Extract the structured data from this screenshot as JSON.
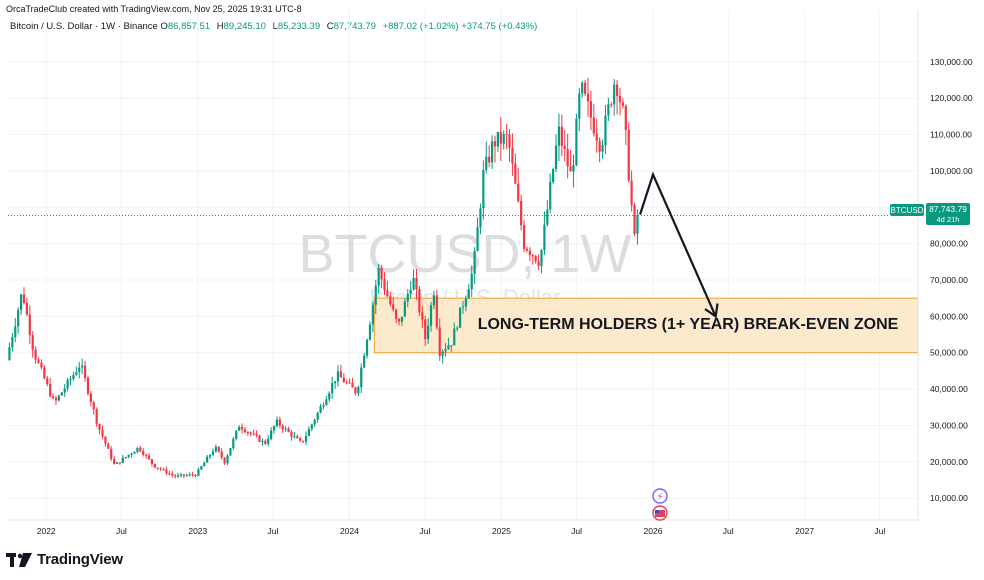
{
  "header": {
    "credit": "OrcaTradeClub created with TradingView.com, Nov 25, 2025 19:31 UTC-8",
    "symbol_line": "Bitcoin / U.S. Dollar · 1W · Binance",
    "ohlc": {
      "o_label": "O",
      "o": "86,857.51",
      "h_label": "H",
      "h": "89,245.10",
      "l_label": "L",
      "l": "85,233.39",
      "c_label": "C",
      "c": "87,743.79",
      "change": "+887.02 (+1.02%)",
      "extra": "+374.75 (+0.43%)"
    }
  },
  "watermark": {
    "ticker": "BTCUSD, 1W",
    "name": "Bitcoin / U.S. Dollar"
  },
  "price_tag": {
    "symbol": "BTCUSD",
    "price": "87,743.79",
    "countdown": "4d 21h"
  },
  "zone_label": "LONG-TERM HOLDERS (1+ YEAR) BREAK-EVEN ZONE",
  "footer": {
    "brand": "TradingView"
  },
  "colors": {
    "up": "#089981",
    "down": "#f23645",
    "zone_fill": "#fde6c4",
    "zone_border": "#f0a030",
    "grid": "#f0f3fa"
  },
  "chart_data": {
    "type": "candlestick",
    "y_ticks": [
      "10,000.00",
      "20,000.00",
      "30,000.00",
      "40,000.00",
      "50,000.00",
      "60,000.00",
      "70,000.00",
      "80,000.00",
      "90,000.00",
      "100,000.00",
      "110,000.00",
      "120,000.00",
      "130,000.00"
    ],
    "y_tick_values": [
      10000,
      20000,
      30000,
      40000,
      50000,
      60000,
      70000,
      80000,
      90000,
      100000,
      110000,
      120000,
      130000
    ],
    "ylim": [
      4000,
      136000
    ],
    "x_ticks": [
      "2022",
      "Jul",
      "2023",
      "Jul",
      "2024",
      "Jul",
      "2025",
      "Jul",
      "2026",
      "Jul",
      "2027",
      "Jul"
    ],
    "x_tick_dates": [
      "2022-01-01",
      "2022-07-01",
      "2023-01-01",
      "2023-07-01",
      "2024-01-01",
      "2024-07-01",
      "2025-01-01",
      "2025-07-01",
      "2026-01-01",
      "2026-07-01",
      "2027-01-01",
      "2027-07-01"
    ],
    "xlim": [
      "2021-10-01",
      "2027-10-01"
    ],
    "last_price": 87743.79,
    "zone": {
      "low": 50000,
      "high": 65000,
      "start": "2024-03-01",
      "end": "2027-10-01"
    },
    "projection_path": [
      {
        "date": "2025-12-01",
        "price": 88000
      },
      {
        "date": "2026-01-01",
        "price": 99000
      },
      {
        "date": "2026-06-01",
        "price": 60000
      }
    ],
    "price_path": [
      {
        "date": "2021-10-01",
        "price": 48000
      },
      {
        "date": "2021-11-08",
        "price": 67000
      },
      {
        "date": "2021-12-06",
        "price": 50000
      },
      {
        "date": "2022-01-24",
        "price": 36000
      },
      {
        "date": "2022-03-28",
        "price": 47000
      },
      {
        "date": "2022-05-09",
        "price": 30000
      },
      {
        "date": "2022-06-18",
        "price": 19000
      },
      {
        "date": "2022-08-15",
        "price": 24000
      },
      {
        "date": "2022-09-20",
        "price": 19000
      },
      {
        "date": "2022-11-09",
        "price": 16000
      },
      {
        "date": "2022-12-31",
        "price": 16500
      },
      {
        "date": "2023-02-15",
        "price": 24000
      },
      {
        "date": "2023-03-10",
        "price": 20000
      },
      {
        "date": "2023-04-14",
        "price": 30000
      },
      {
        "date": "2023-06-15",
        "price": 25000
      },
      {
        "date": "2023-07-13",
        "price": 31000
      },
      {
        "date": "2023-09-11",
        "price": 25000
      },
      {
        "date": "2023-10-23",
        "price": 34000
      },
      {
        "date": "2023-12-06",
        "price": 44000
      },
      {
        "date": "2024-01-22",
        "price": 39000
      },
      {
        "date": "2024-02-28",
        "price": 62000
      },
      {
        "date": "2024-03-14",
        "price": 73000
      },
      {
        "date": "2024-05-01",
        "price": 57000
      },
      {
        "date": "2024-06-05",
        "price": 71000
      },
      {
        "date": "2024-07-05",
        "price": 54000
      },
      {
        "date": "2024-07-29",
        "price": 69000
      },
      {
        "date": "2024-08-05",
        "price": 50000
      },
      {
        "date": "2024-09-06",
        "price": 53000
      },
      {
        "date": "2024-10-29",
        "price": 73000
      },
      {
        "date": "2024-11-22",
        "price": 99000
      },
      {
        "date": "2024-12-17",
        "price": 108000
      },
      {
        "date": "2025-01-20",
        "price": 109000
      },
      {
        "date": "2025-02-28",
        "price": 80000
      },
      {
        "date": "2025-04-07",
        "price": 75000
      },
      {
        "date": "2025-05-22",
        "price": 111000
      },
      {
        "date": "2025-06-22",
        "price": 98000
      },
      {
        "date": "2025-07-14",
        "price": 123000
      },
      {
        "date": "2025-09-01",
        "price": 107000
      },
      {
        "date": "2025-10-06",
        "price": 126000
      },
      {
        "date": "2025-10-27",
        "price": 114000
      },
      {
        "date": "2025-11-21",
        "price": 81000
      },
      {
        "date": "2025-11-25",
        "price": 87743.79
      }
    ]
  }
}
